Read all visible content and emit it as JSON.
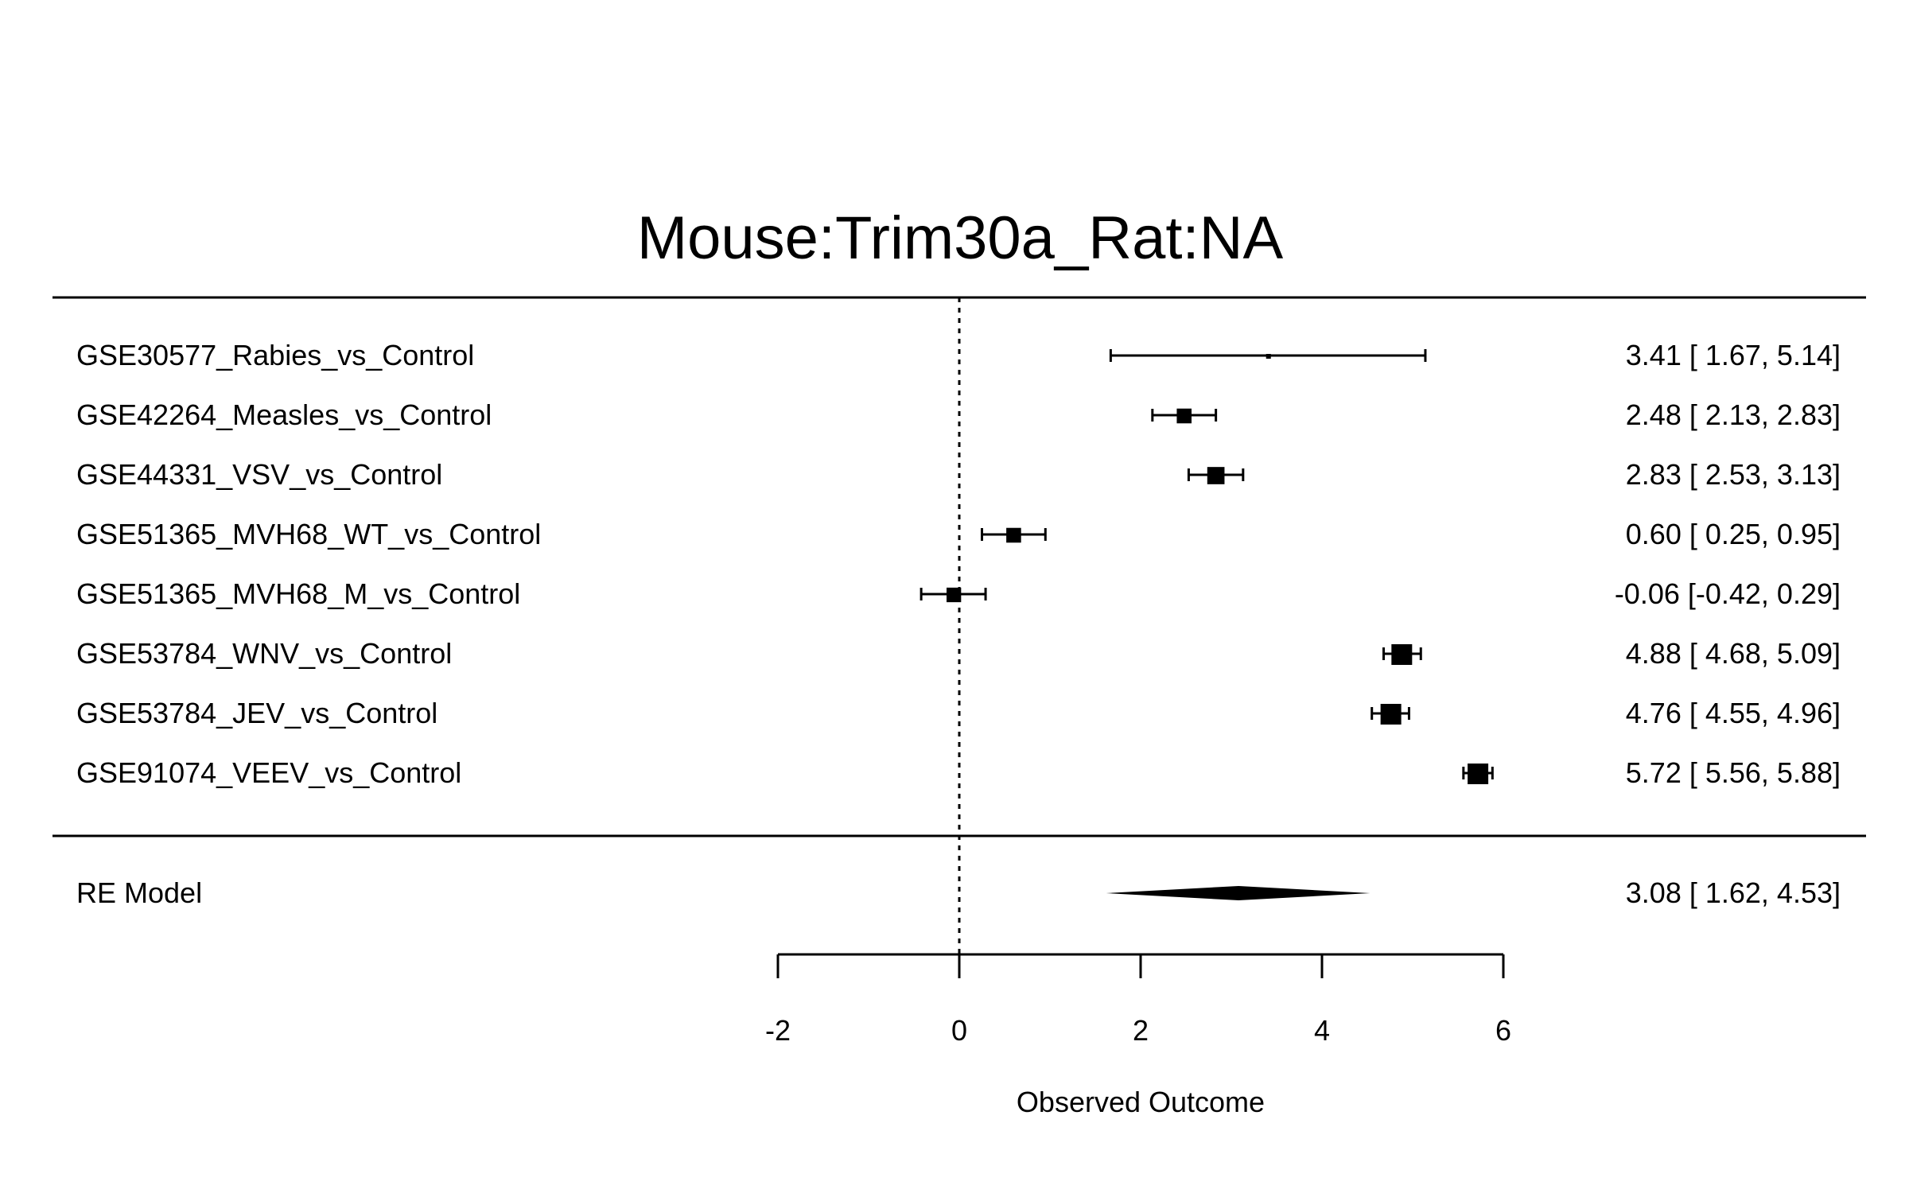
{
  "chart_data": {
    "type": "forest",
    "title": "Mouse:Trim30a_Rat:NA",
    "xlabel": "Observed Outcome",
    "xlim": [
      -2,
      6
    ],
    "xticks": [
      "-2",
      "0",
      "2",
      "4",
      "6"
    ],
    "reference_line": 0,
    "studies": [
      {
        "label": "GSE30577_Rabies_vs_Control",
        "estimate": 3.41,
        "ci_low": 1.67,
        "ci_high": 5.14,
        "text": "3.41 [ 1.67, 5.14]"
      },
      {
        "label": "GSE42264_Measles_vs_Control",
        "estimate": 2.48,
        "ci_low": 2.13,
        "ci_high": 2.83,
        "text": "2.48 [ 2.13, 2.83]"
      },
      {
        "label": "GSE44331_VSV_vs_Control",
        "estimate": 2.83,
        "ci_low": 2.53,
        "ci_high": 3.13,
        "text": "2.83 [ 2.53, 3.13]"
      },
      {
        "label": "GSE51365_MVH68_WT_vs_Control",
        "estimate": 0.6,
        "ci_low": 0.25,
        "ci_high": 0.95,
        "text": "0.60 [ 0.25, 0.95]"
      },
      {
        "label": "GSE51365_MVH68_M_vs_Control",
        "estimate": -0.06,
        "ci_low": -0.42,
        "ci_high": 0.29,
        "text": "-0.06 [-0.42, 0.29]"
      },
      {
        "label": "GSE53784_WNV_vs_Control",
        "estimate": 4.88,
        "ci_low": 4.68,
        "ci_high": 5.09,
        "text": "4.88 [ 4.68, 5.09]"
      },
      {
        "label": "GSE53784_JEV_vs_Control",
        "estimate": 4.76,
        "ci_low": 4.55,
        "ci_high": 4.96,
        "text": "4.76 [ 4.55, 4.96]"
      },
      {
        "label": "GSE91074_VEEV_vs_Control",
        "estimate": 5.72,
        "ci_low": 5.56,
        "ci_high": 5.88,
        "text": "5.72 [ 5.56, 5.88]"
      }
    ],
    "summary": {
      "label": "RE Model",
      "estimate": 3.08,
      "ci_low": 1.62,
      "ci_high": 4.53,
      "text": "3.08 [ 1.62, 4.53]"
    }
  }
}
